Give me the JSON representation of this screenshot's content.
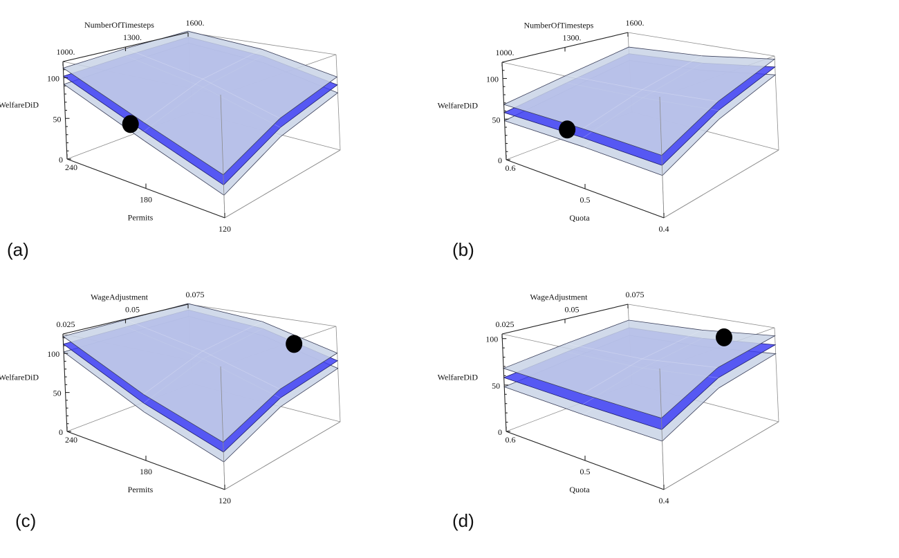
{
  "figure": {
    "panel_labels": [
      "(a)",
      "(b)",
      "(c)",
      "(d)"
    ]
  },
  "chart_data": [
    {
      "id": "a",
      "type": "surface3d",
      "label": "(a)",
      "xlabel": "Permits",
      "ylabel": "NumberOfTimesteps",
      "zlabel": "WelfareDiD",
      "x_ticks": [
        "240",
        "180",
        "120"
      ],
      "y_ticks": [
        "1000.",
        "1300.",
        "1600."
      ],
      "z_ticks": [
        "0",
        "50",
        "100"
      ],
      "x_range": [
        240,
        120
      ],
      "y_range": [
        1000,
        1600
      ],
      "z_range": [
        0,
        120
      ],
      "grid_x": [
        240,
        180,
        120
      ],
      "grid_y": [
        1000,
        1300,
        1600
      ],
      "upper": [
        [
          112,
          118,
          122
        ],
        [
          72,
          98,
          112
        ],
        [
          42,
          72,
          92
        ]
      ],
      "mean": [
        [
          102,
          108,
          113
        ],
        [
          62,
          88,
          103
        ],
        [
          32,
          62,
          82
        ]
      ],
      "lower": [
        [
          92,
          98,
          104
        ],
        [
          52,
          78,
          94
        ],
        [
          22,
          52,
          72
        ]
      ],
      "marker": {
        "x": 190,
        "y": 1000,
        "z": 66
      }
    },
    {
      "id": "b",
      "type": "surface3d",
      "label": "(b)",
      "xlabel": "Quota",
      "ylabel": "NumberOfTimesteps",
      "zlabel": "WelfareDiD",
      "x_ticks": [
        "0.6",
        "0.5",
        "0.4"
      ],
      "y_ticks": [
        "1000.",
        "1300.",
        "1600."
      ],
      "z_ticks": [
        "0",
        "50",
        "100"
      ],
      "x_range": [
        0.6,
        0.4
      ],
      "y_range": [
        1000,
        1600
      ],
      "z_range": [
        0,
        120
      ],
      "grid_x": [
        0.6,
        0.5,
        0.4
      ],
      "grid_y": [
        1000,
        1300,
        1600
      ],
      "upper": [
        [
          68,
          82,
          98
        ],
        [
          66,
          86,
          104
        ],
        [
          62,
          92,
          116
        ]
      ],
      "mean": [
        [
          58,
          72,
          88
        ],
        [
          56,
          76,
          94
        ],
        [
          52,
          82,
          106
        ]
      ],
      "lower": [
        [
          48,
          62,
          78
        ],
        [
          46,
          66,
          84
        ],
        [
          42,
          72,
          96
        ]
      ],
      "marker": {
        "x": 0.52,
        "y": 1000,
        "z": 60
      }
    },
    {
      "id": "c",
      "type": "surface3d",
      "label": "(c)",
      "xlabel": "Permits",
      "ylabel": "WageAdjustment",
      "zlabel": "WelfareDiD",
      "x_ticks": [
        "240",
        "180",
        "120"
      ],
      "y_ticks": [
        "0.025",
        "0.05",
        "0.075"
      ],
      "z_ticks": [
        "0",
        "50",
        "100"
      ],
      "x_range": [
        240,
        120
      ],
      "y_range": [
        0.025,
        0.075
      ],
      "z_range": [
        0,
        125
      ],
      "grid_x": [
        240,
        180,
        120
      ],
      "grid_y": [
        0.025,
        0.05,
        0.075
      ],
      "upper": [
        [
          122,
          124,
          126
        ],
        [
          75,
          102,
          116
        ],
        [
          48,
          76,
          90
        ]
      ],
      "mean": [
        [
          112,
          114,
          116
        ],
        [
          65,
          92,
          106
        ],
        [
          38,
          66,
          80
        ]
      ],
      "lower": [
        [
          102,
          104,
          106
        ],
        [
          55,
          82,
          96
        ],
        [
          28,
          56,
          70
        ]
      ],
      "marker": {
        "x": 155,
        "y": 0.075,
        "z": 92
      }
    },
    {
      "id": "d",
      "type": "surface3d",
      "label": "(d)",
      "xlabel": "Quota",
      "ylabel": "WageAdjustment",
      "zlabel": "WelfareDiD",
      "x_ticks": [
        "0.6",
        "0.5",
        "0.4"
      ],
      "y_ticks": [
        "0.025",
        "0.05",
        "0.075"
      ],
      "z_ticks": [
        "0",
        "50",
        "100"
      ],
      "x_range": [
        0.6,
        0.4
      ],
      "y_range": [
        0.025,
        0.075
      ],
      "z_range": [
        0,
        105
      ],
      "grid_x": [
        0.6,
        0.5,
        0.4
      ],
      "grid_y": [
        0.025,
        0.05,
        0.075
      ],
      "upper": [
        [
          68,
          76,
          84
        ],
        [
          64,
          78,
          88
        ],
        [
          62,
          86,
          96
        ]
      ],
      "mean": [
        [
          58,
          66,
          74
        ],
        [
          54,
          68,
          78
        ],
        [
          52,
          76,
          86
        ]
      ],
      "lower": [
        [
          48,
          56,
          64
        ],
        [
          44,
          58,
          68
        ],
        [
          42,
          66,
          76
        ]
      ],
      "marker": {
        "x": 0.47,
        "y": 0.075,
        "z": 84
      }
    }
  ],
  "colors": {
    "mean_surface": "#3b3bf5",
    "bound_surface": "#c9d3e6",
    "marker": "#000000",
    "box": "#8a8a8a"
  }
}
